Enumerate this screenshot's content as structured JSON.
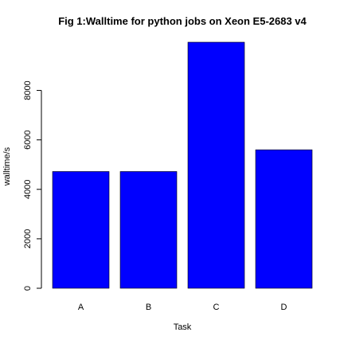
{
  "chart_data": {
    "type": "bar",
    "title": "Fig 1:Walltime for python jobs on Xeon E5-2683 v4",
    "xlabel": "Task",
    "ylabel": "walltime/s",
    "categories": [
      "A",
      "B",
      "C",
      "D"
    ],
    "values": [
      4720,
      4720,
      9950,
      5600
    ],
    "yticks": [
      0,
      2000,
      4000,
      6000,
      8000
    ],
    "ylim": [
      0,
      9950
    ],
    "bar_color": "#0000ff",
    "grid": false,
    "legend": "none"
  }
}
